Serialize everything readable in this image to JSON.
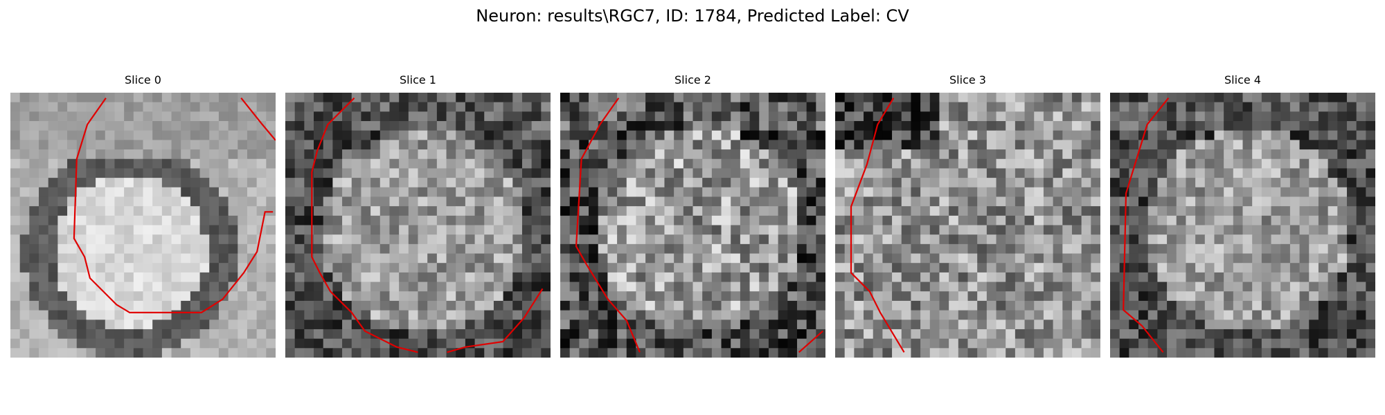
{
  "figure": {
    "title": "Neuron: results\\RGC7, ID: 1784, Predicted Label: CV"
  },
  "panels": [
    {
      "title": "Slice 0",
      "pattern": "blob"
    },
    {
      "title": "Slice 1",
      "pattern": "ring"
    },
    {
      "title": "Slice 2",
      "pattern": "ring-noisy"
    },
    {
      "title": "Slice 3",
      "pattern": "noisy-dark-top"
    },
    {
      "title": "Slice 4",
      "pattern": "ring"
    }
  ],
  "colors": {
    "contour": "#e00000",
    "background": "#ffffff"
  }
}
